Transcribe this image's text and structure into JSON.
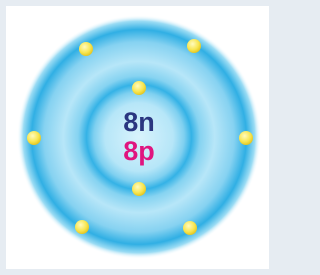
{
  "nucleus": {
    "neutrons": "8n",
    "protons": "8p"
  }
}
